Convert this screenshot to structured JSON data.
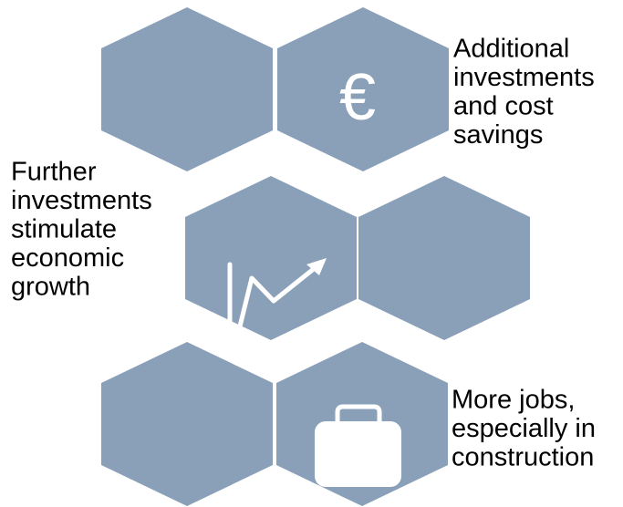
{
  "captions": [
    {
      "lines": [
        "Additional",
        "investments",
        "and cost",
        "savings"
      ]
    },
    {
      "lines": [
        "Further",
        "investments",
        "stimulate",
        "economic",
        "growth"
      ]
    },
    {
      "lines": [
        "More jobs,",
        "especially in",
        "construction"
      ]
    }
  ],
  "euro_icon": "€"
}
